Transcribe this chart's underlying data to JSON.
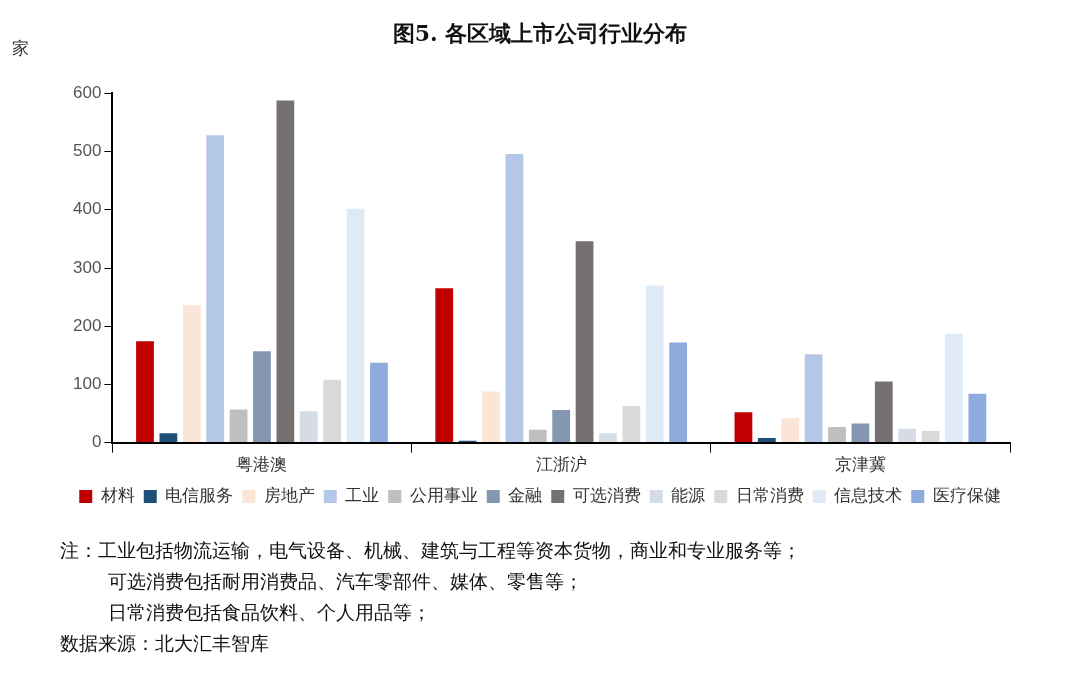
{
  "chart_data": {
    "type": "bar",
    "title": "图5. 各区域上市公司行业分布",
    "ylabel": "家",
    "categories": [
      "粤港澳",
      "江浙沪",
      "京津冀"
    ],
    "series": [
      {
        "name": "材料",
        "color": "#c00000",
        "values": [
          174,
          265,
          52
        ]
      },
      {
        "name": "电信服务",
        "color": "#1f4e79",
        "values": [
          16,
          3,
          8
        ]
      },
      {
        "name": "房地产",
        "color": "#fbe5d6",
        "values": [
          236,
          88,
          42
        ]
      },
      {
        "name": "工业",
        "color": "#b4c7e7",
        "values": [
          528,
          496,
          152
        ]
      },
      {
        "name": "公用事业",
        "color": "#bfbfbf",
        "values": [
          57,
          22,
          27
        ]
      },
      {
        "name": "金融",
        "color": "#8497b0",
        "values": [
          157,
          56,
          33
        ]
      },
      {
        "name": "可选消费",
        "color": "#767171",
        "values": [
          588,
          346,
          105
        ]
      },
      {
        "name": "能源",
        "color": "#d6dce5",
        "values": [
          54,
          16,
          24
        ]
      },
      {
        "name": "日常消费",
        "color": "#d9d9d9",
        "values": [
          108,
          63,
          20
        ]
      },
      {
        "name": "信息技术",
        "color": "#deebf7",
        "values": [
          402,
          270,
          187
        ]
      },
      {
        "name": "医疗保健",
        "color": "#8faadc",
        "values": [
          137,
          172,
          84
        ]
      }
    ],
    "ylim": [
      0,
      600
    ],
    "yticks": [
      0,
      100,
      200,
      300,
      400,
      500,
      600
    ],
    "grid": false,
    "legend": "bottom",
    "annotations": [
      "注：工业包括物流运输，电气设备、机械、建筑与工程等资本货物，商业和专业服务等；",
      "可选消费包括耐用消费品、汽车零部件、媒体、零售等；",
      "日常消费包括食品饮料、个人用品等；",
      "数据来源：北大汇丰智库"
    ]
  }
}
